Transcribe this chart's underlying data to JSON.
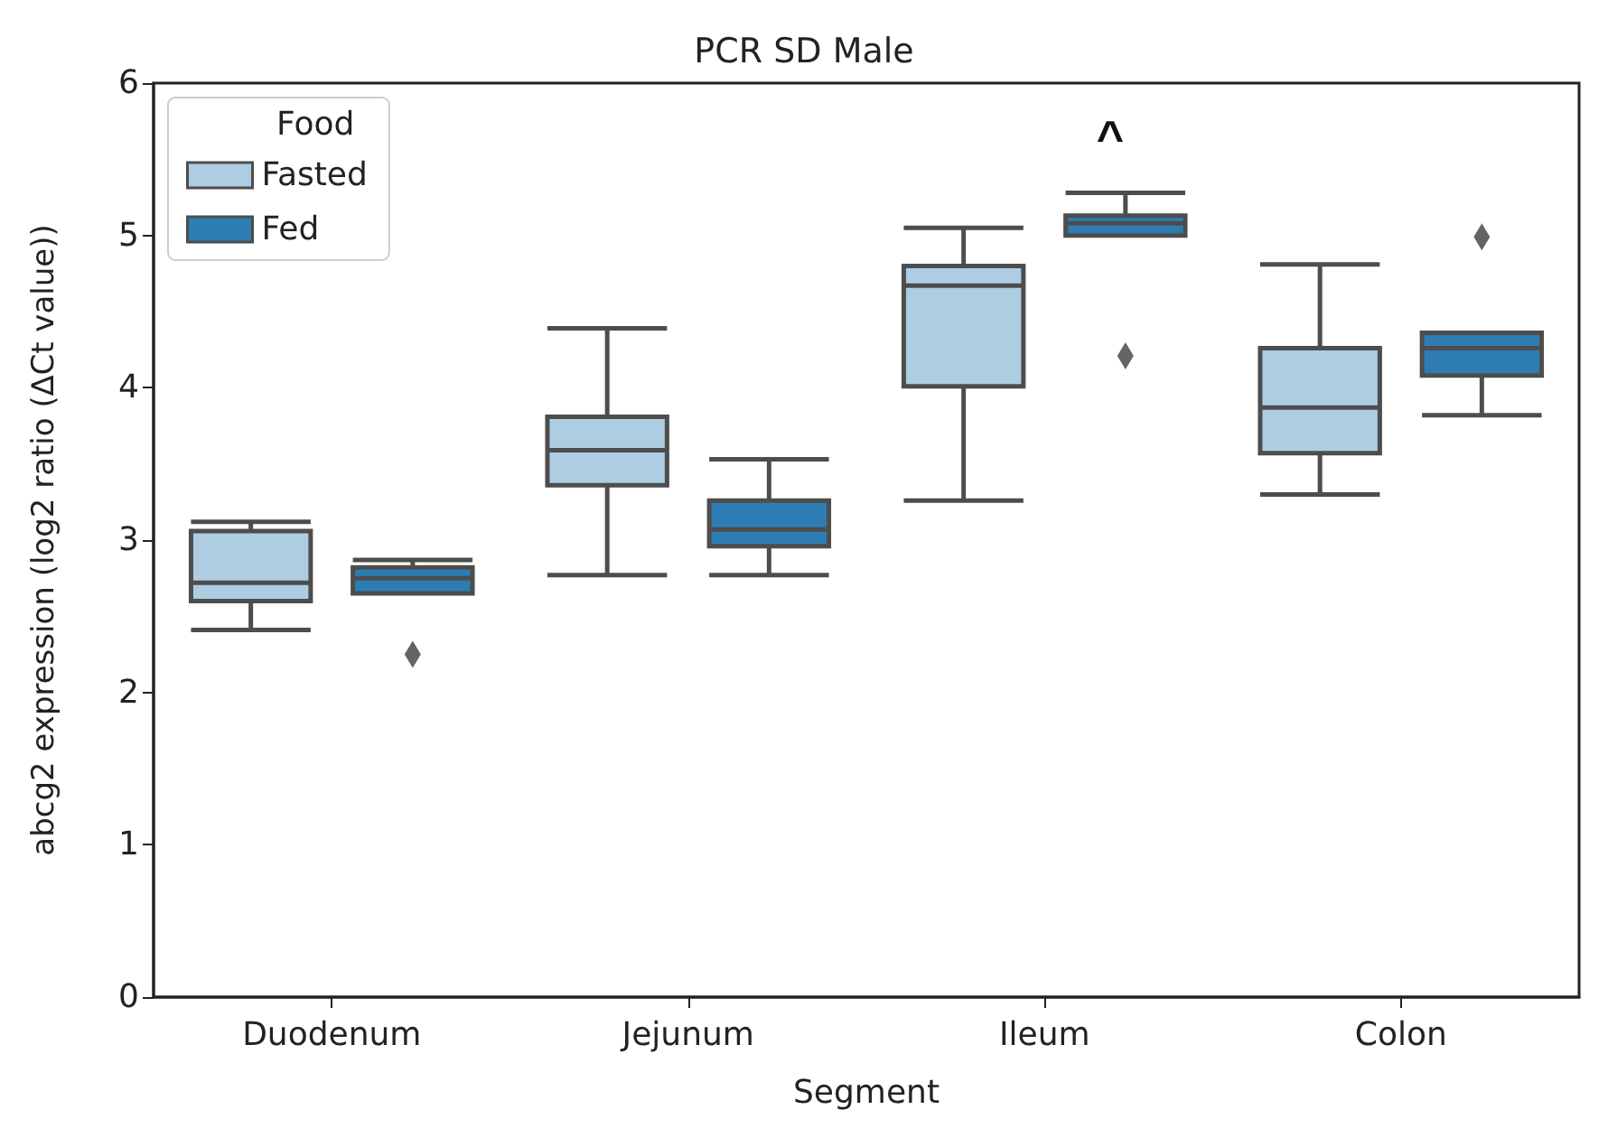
{
  "chart_data": {
    "type": "box",
    "title": "PCR SD Male",
    "xlabel": "Segment",
    "ylabel": "abcg2 expression (log2 ratio (∆Ct value))",
    "legend_title": "Food",
    "categories": [
      "Duodenum",
      "Jejunum",
      "Ileum",
      "Colon"
    ],
    "series": [
      {
        "name": "Fasted",
        "color": "#afcde2",
        "boxes": [
          {
            "low": 2.41,
            "q1": 2.6,
            "median": 2.72,
            "q3": 3.06,
            "high": 3.12
          },
          {
            "low": 2.77,
            "q1": 3.36,
            "median": 3.59,
            "q3": 3.81,
            "high": 4.39
          },
          {
            "low": 3.26,
            "q1": 4.01,
            "median": 4.67,
            "q3": 4.8,
            "high": 5.05
          },
          {
            "low": 3.3,
            "q1": 3.57,
            "median": 3.87,
            "q3": 4.26,
            "high": 4.81
          }
        ]
      },
      {
        "name": "Fed",
        "color": "#2d7db4",
        "boxes": [
          {
            "low": 2.65,
            "q1": 2.65,
            "median": 2.75,
            "q3": 2.82,
            "high": 2.87,
            "outliers": [
              2.25
            ]
          },
          {
            "low": 2.77,
            "q1": 2.96,
            "median": 3.07,
            "q3": 3.26,
            "high": 3.53
          },
          {
            "low": 5.0,
            "q1": 5.0,
            "median": 5.08,
            "q3": 5.13,
            "high": 5.28,
            "outliers": [
              4.21
            ]
          },
          {
            "low": 3.82,
            "q1": 4.08,
            "median": 4.26,
            "q3": 4.36,
            "high": 4.36,
            "outliers": [
              4.99
            ]
          }
        ]
      }
    ],
    "annotations": [
      "^"
    ],
    "ylim": [
      0,
      6
    ],
    "yticks": [
      0,
      1,
      2,
      3,
      4,
      5,
      6
    ],
    "grid": false,
    "legend": "top left"
  }
}
